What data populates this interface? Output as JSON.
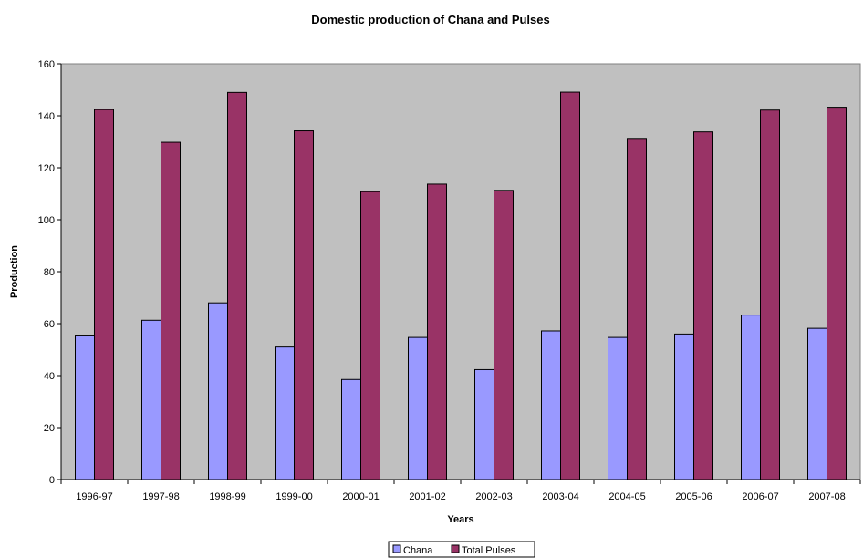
{
  "chart_data": {
    "type": "bar",
    "title": "Domestic production of Chana and Pulses",
    "xlabel": "Years",
    "ylabel": "Production",
    "categories": [
      "1996-97",
      "1997-98",
      "1998-99",
      "1999-00",
      "2000-01",
      "2001-02",
      "2002-03",
      "2003-04",
      "2004-05",
      "2005-06",
      "2006-07",
      "2007-08"
    ],
    "series": [
      {
        "name": "Chana",
        "color": "#9999ff",
        "values": [
          55.6,
          61.3,
          68.0,
          51.0,
          38.5,
          54.7,
          42.3,
          57.2,
          54.7,
          56.0,
          63.3,
          58.2
        ]
      },
      {
        "name": "Total Pulses",
        "color": "#993366",
        "values": [
          142.4,
          129.8,
          149.0,
          134.2,
          110.8,
          113.7,
          111.3,
          149.1,
          131.3,
          133.8,
          142.2,
          143.3
        ]
      }
    ],
    "ylim": [
      0,
      160
    ],
    "yticks": [
      "0",
      "20",
      "40",
      "60",
      "80",
      "100",
      "120",
      "140",
      "160"
    ],
    "plot_background": "#c0c0c0",
    "grid": false,
    "legend_position": "bottom"
  }
}
